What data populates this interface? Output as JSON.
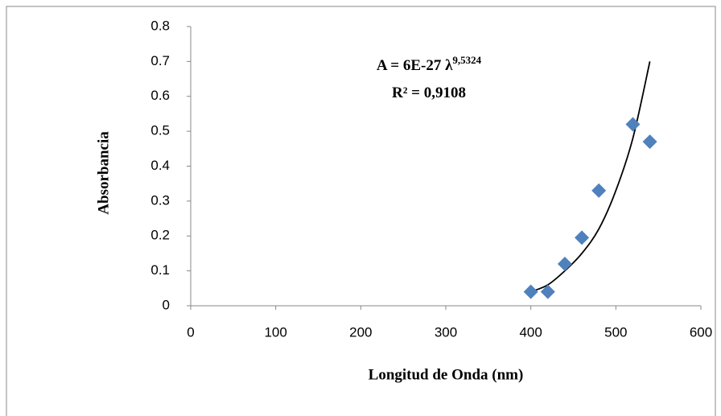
{
  "chart_data": {
    "type": "scatter",
    "x_label": "Longitud de Onda  (nm)",
    "y_label": "Absorbancia",
    "equation": "A = 6E-27 λ",
    "equation_exponent": "9,5324",
    "r_squared": "R² = 0,9108",
    "x": [
      400,
      420,
      440,
      460,
      480,
      520,
      540
    ],
    "values": [
      0.04,
      0.04,
      0.12,
      0.195,
      0.33,
      0.52,
      0.47
    ],
    "color": "#4f81bd",
    "trendline": {
      "x": [
        400,
        420,
        440,
        460,
        480,
        500,
        520,
        540
      ],
      "values": [
        0.04,
        0.06,
        0.1,
        0.15,
        0.22,
        0.33,
        0.48,
        0.7
      ],
      "color": "#000000"
    },
    "xlim": [
      0,
      600
    ],
    "xticks": [
      0,
      100,
      200,
      300,
      400,
      500,
      600
    ],
    "ylim": [
      0,
      0.8
    ],
    "yticks": [
      0,
      0.1,
      0.2,
      0.3,
      0.4,
      0.5,
      0.6,
      0.7,
      0.8
    ]
  }
}
